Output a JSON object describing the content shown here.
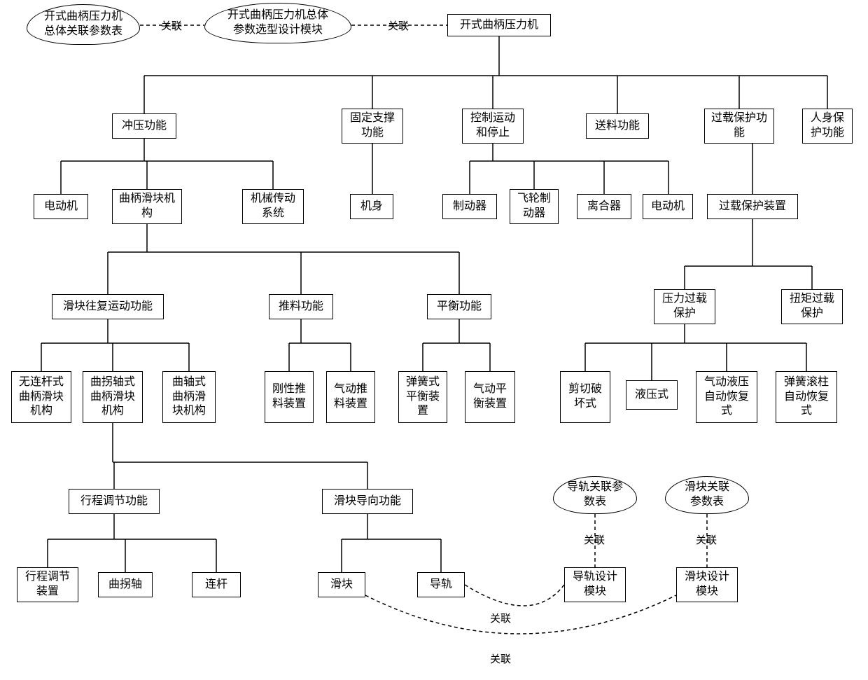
{
  "clouds": {
    "c1": "开式曲柄压力机\n总体关联参数表",
    "c2": "开式曲柄压力机总体\n参数选型设计模块",
    "c3": "导轨关联参\n数表",
    "c4": "滑块关联\n参数表"
  },
  "nodes": {
    "root": "开式曲柄压力机",
    "f1": "冲压功能",
    "f2": "固定支撑\n功能",
    "f3": "控制运动\n和停止",
    "f4": "送料功能",
    "f5": "过载保护功\n能",
    "f6": "人身保\n护功能",
    "m1": "电动机",
    "m2": "曲柄滑块机\n构",
    "m3": "机械传动\n系统",
    "m4": "机身",
    "m5": "制动器",
    "m6": "飞轮制\n动器",
    "m7": "离合器",
    "m8": "电动机",
    "m9": "过载保护装置",
    "s1": "滑块往复运动功能",
    "s2": "推料功能",
    "s3": "平衡功能",
    "p1": "压力过载\n保护",
    "p2": "扭矩过载\n保护",
    "l1": "无连杆式\n曲柄滑块\n机构",
    "l2": "曲拐轴式\n曲柄滑块\n机构",
    "l3": "曲轴式\n曲柄滑\n块机构",
    "l4": "刚性推\n料装置",
    "l5": "气动推\n料装置",
    "l6": "弹簧式\n平衡装\n置",
    "l7": "气动平\n衡装置",
    "l8": "剪切破\n坏式",
    "l9": "液压式",
    "l10": "气动液压\n自动恢复\n式",
    "l11": "弹簧滚柱\n自动恢复\n式",
    "t1": "行程调节功能",
    "t2": "滑块导向功能",
    "b1": "行程调节\n装置",
    "b2": "曲拐轴",
    "b3": "连杆",
    "b4": "滑块",
    "b5": "导轨",
    "b6": "导轨设计\n模块",
    "b7": "滑块设计\n模块"
  },
  "labels": {
    "a1": "关联",
    "a2": "关联",
    "a3": "关联",
    "a4": "关联",
    "a5": "关联",
    "a6": "关联"
  },
  "style": {
    "stroke": "#000000",
    "background": "#ffffff",
    "fontsize_node": 16,
    "fontsize_label": 15
  }
}
